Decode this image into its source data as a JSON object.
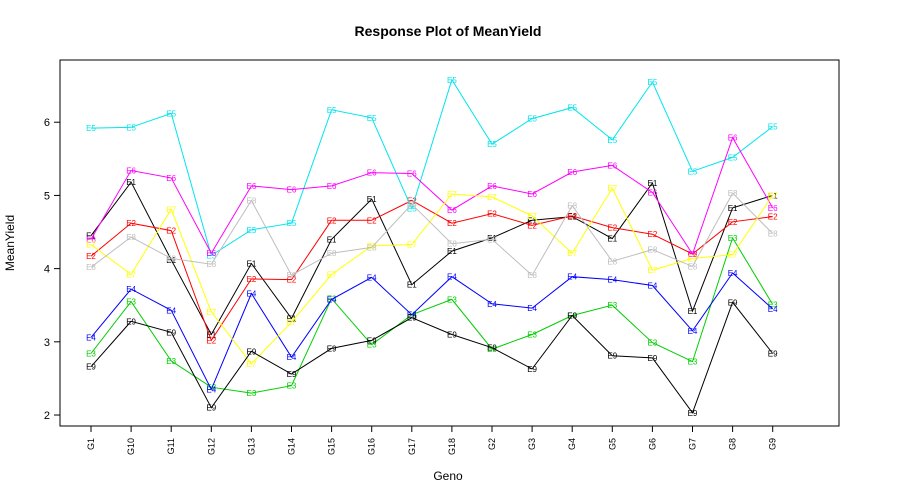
{
  "chart_data": {
    "type": "line",
    "title": "Response Plot of MeanYield",
    "xlabel": "Geno",
    "ylabel": "MeanYield",
    "categories": [
      "G1",
      "G10",
      "G11",
      "G12",
      "G13",
      "G14",
      "G15",
      "G16",
      "G17",
      "G18",
      "G2",
      "G3",
      "G4",
      "G5",
      "G6",
      "G7",
      "G8",
      "G9"
    ],
    "ylim": [
      1.85,
      6.85
    ],
    "yticks": [
      "2",
      "3",
      "4",
      "5",
      "6"
    ],
    "grid": false,
    "legend": "none",
    "series": [
      {
        "name": "E1",
        "color": "#000000",
        "values": [
          4.45,
          5.18,
          4.12,
          3.1,
          4.07,
          3.32,
          4.4,
          4.95,
          3.78,
          4.24,
          4.42,
          4.66,
          4.71,
          4.41,
          5.17,
          3.42,
          4.83,
          5.0
        ]
      },
      {
        "name": "E2",
        "color": "#ff0000",
        "values": [
          4.17,
          4.62,
          4.52,
          3.02,
          3.86,
          3.85,
          4.66,
          4.66,
          4.93,
          4.62,
          4.75,
          4.59,
          4.72,
          4.56,
          4.47,
          4.2,
          4.64,
          4.71
        ]
      },
      {
        "name": "E3",
        "color": "#00cd00",
        "values": [
          2.84,
          3.55,
          2.74,
          2.38,
          2.3,
          2.4,
          3.59,
          2.96,
          3.37,
          3.58,
          2.9,
          3.1,
          3.36,
          3.5,
          2.99,
          2.73,
          4.42,
          3.51
        ]
      },
      {
        "name": "E4",
        "color": "#0000ff",
        "values": [
          3.06,
          3.72,
          3.43,
          2.35,
          3.66,
          2.79,
          3.58,
          3.88,
          3.37,
          3.89,
          3.52,
          3.46,
          3.89,
          3.85,
          3.77,
          3.15,
          3.94,
          3.45
        ]
      },
      {
        "name": "E5",
        "color": "#00e5ee",
        "values": [
          5.92,
          5.93,
          6.12,
          4.18,
          4.53,
          4.62,
          6.17,
          6.06,
          4.82,
          6.58,
          5.7,
          6.05,
          6.2,
          5.76,
          6.55,
          5.33,
          5.52,
          5.94
        ]
      },
      {
        "name": "E6",
        "color": "#ff00ff",
        "values": [
          4.4,
          5.34,
          5.24,
          4.21,
          5.13,
          5.08,
          5.13,
          5.31,
          5.3,
          4.8,
          5.13,
          5.02,
          5.32,
          5.41,
          5.04,
          4.2,
          5.79,
          4.83
        ]
      },
      {
        "name": "E7",
        "color": "#ffff00",
        "values": [
          4.33,
          3.92,
          4.81,
          3.41,
          2.7,
          3.27,
          3.92,
          4.31,
          4.33,
          5.02,
          4.98,
          4.72,
          4.21,
          5.1,
          3.98,
          4.14,
          4.19,
          5.0
        ]
      },
      {
        "name": "E8",
        "color": "#bebebe",
        "values": [
          4.02,
          4.43,
          4.14,
          4.06,
          4.93,
          3.91,
          4.21,
          4.29,
          4.88,
          4.34,
          4.4,
          3.91,
          4.86,
          4.1,
          4.26,
          4.03,
          5.03,
          4.48
        ]
      },
      {
        "name": "E9",
        "color": "#000000",
        "values": [
          2.66,
          3.28,
          3.13,
          2.1,
          2.87,
          2.56,
          2.91,
          3.02,
          3.33,
          3.1,
          2.92,
          2.63,
          3.36,
          2.81,
          2.78,
          2.03,
          3.54,
          2.84
        ]
      }
    ]
  }
}
